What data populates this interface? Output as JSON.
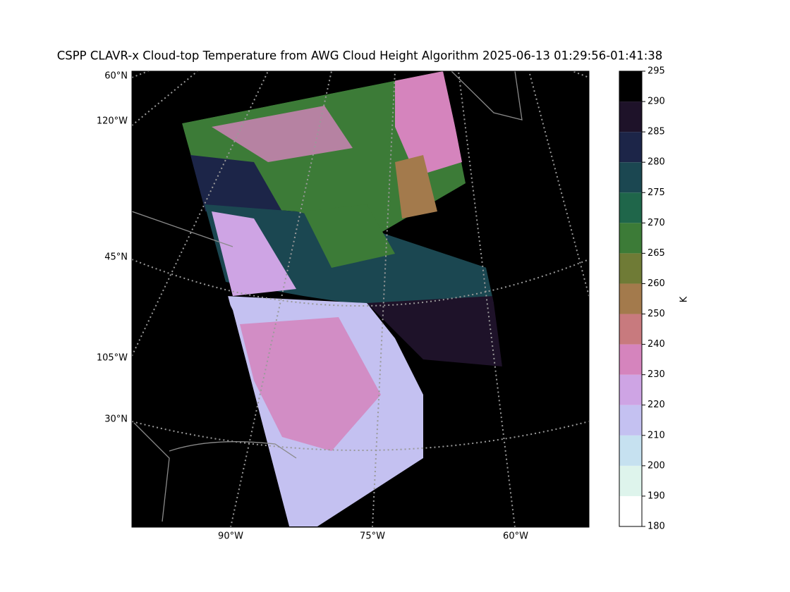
{
  "title": "CSPP CLAVR-x Cloud-top Temperature from AWG Cloud Height Algorithm 2025-06-13 01:29:56-01:41:38",
  "map": {
    "left_labels": [
      "60°N",
      "120°W",
      "45°N",
      "105°W",
      "30°N"
    ],
    "bottom_labels": [
      "90°W",
      "75°W",
      "60°W"
    ]
  },
  "colorbar": {
    "label": "K",
    "ticks": [
      180,
      190,
      200,
      210,
      220,
      230,
      240,
      250,
      260,
      265,
      270,
      275,
      280,
      285,
      290,
      295
    ],
    "colors": [
      "#ffffff",
      "#def4ec",
      "#c6e1f0",
      "#c4c1f1",
      "#cea4e4",
      "#d584bd",
      "#c87a7e",
      "#a37a4c",
      "#6f7b36",
      "#3c7b37",
      "#1f664a",
      "#1b4751",
      "#1c2548",
      "#1e1229",
      "#000000"
    ]
  }
}
